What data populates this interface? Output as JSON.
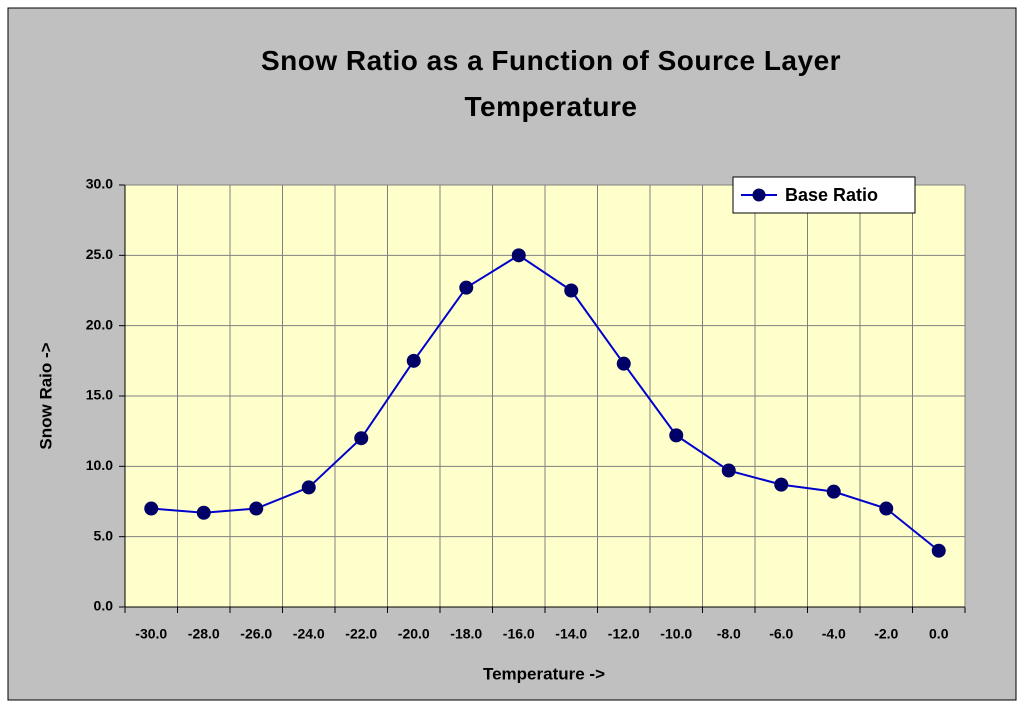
{
  "chart_data": {
    "type": "line",
    "title": "Snow Ratio as a Function of Source Layer Temperature",
    "x_label": "Temperature ->",
    "y_label": "Snow Raio ->",
    "categories": [
      "-30.0",
      "-28.0",
      "-26.0",
      "-24.0",
      "-22.0",
      "-20.0",
      "-18.0",
      "-16.0",
      "-14.0",
      "-12.0",
      "-10.0",
      "-8.0",
      "-6.0",
      "-4.0",
      "-2.0",
      "0.0"
    ],
    "series": [
      {
        "name": "Base Ratio",
        "color": "#0000cc",
        "marker_color": "#000066",
        "values": [
          7.0,
          6.7,
          7.0,
          8.5,
          12.0,
          17.5,
          22.7,
          25.0,
          22.5,
          17.3,
          12.2,
          9.7,
          8.7,
          8.2,
          7.0,
          4.0
        ]
      }
    ],
    "ylim": [
      0,
      30
    ],
    "yticks": [
      {
        "value": 0,
        "label": "0.0"
      },
      {
        "value": 5,
        "label": "5.0"
      },
      {
        "value": 10,
        "label": "10.0"
      },
      {
        "value": 15,
        "label": "15.0"
      },
      {
        "value": 20,
        "label": "20.0"
      },
      {
        "value": 25,
        "label": "25.0"
      },
      {
        "value": 30,
        "label": "30.0"
      }
    ],
    "grid": true,
    "legend": "upper right"
  }
}
